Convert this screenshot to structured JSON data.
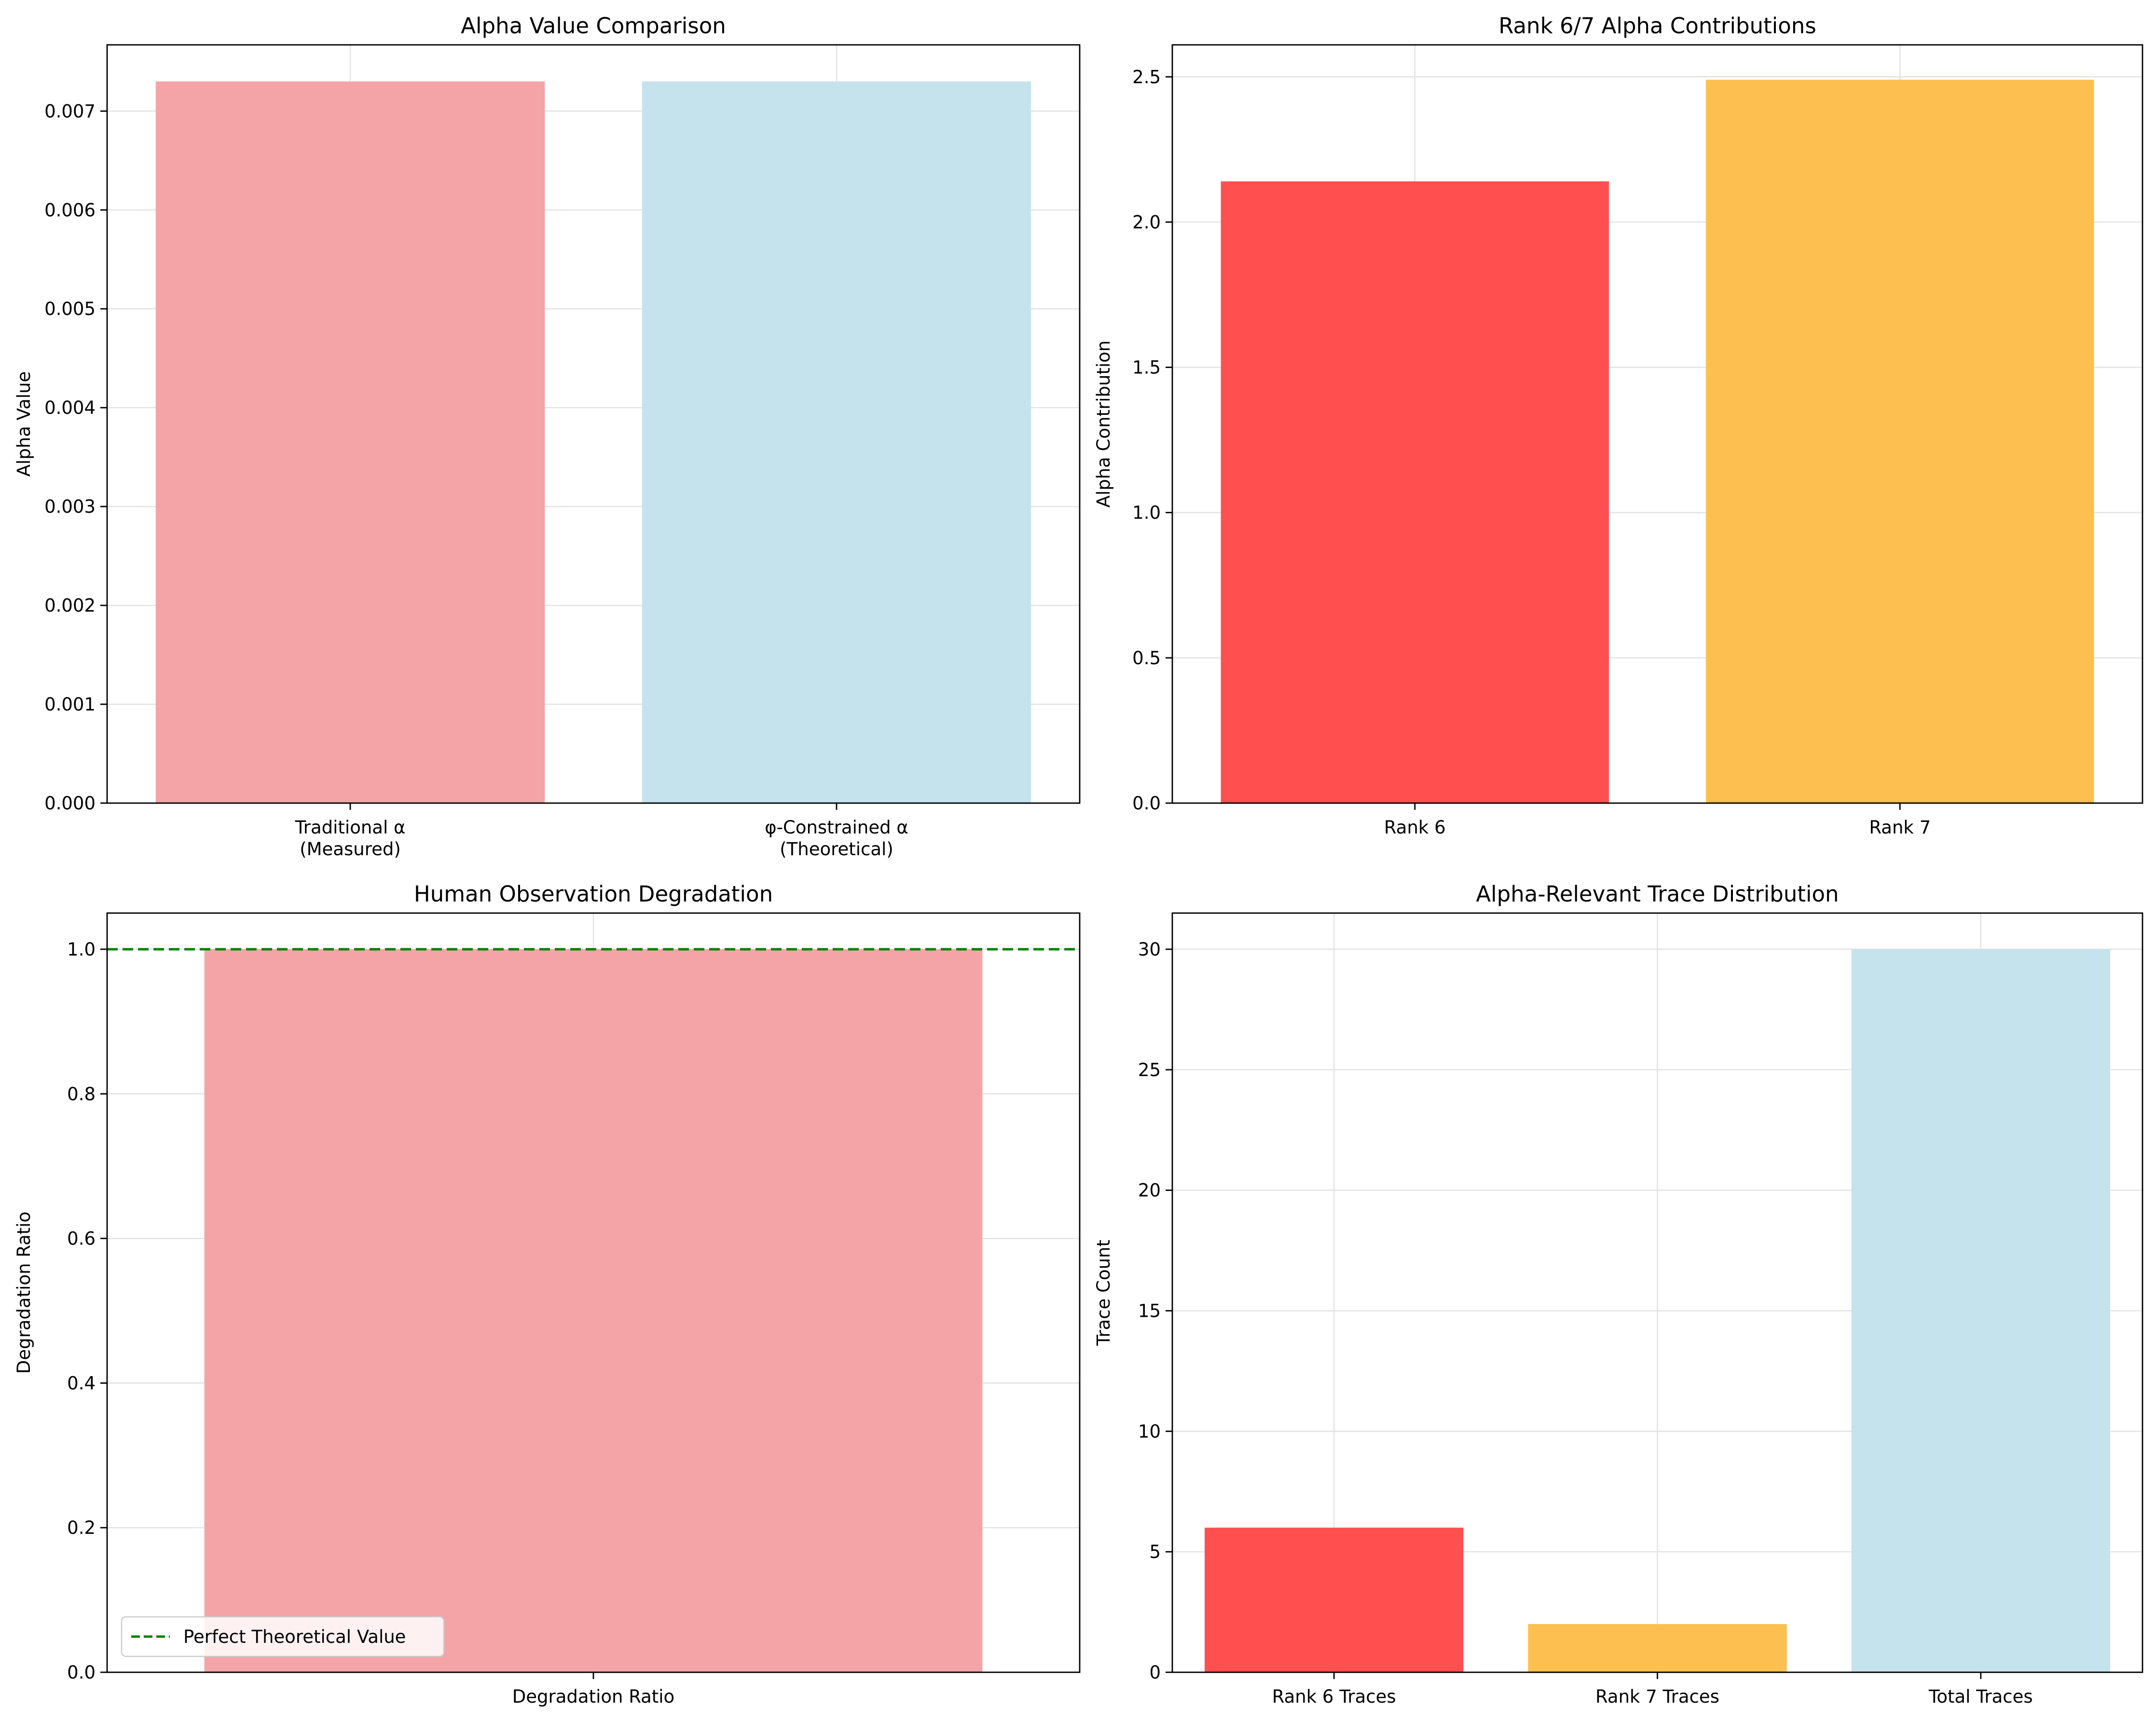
{
  "chart_data": [
    {
      "type": "bar",
      "title": "Alpha Value Comparison",
      "xlabel": "",
      "ylabel": "Alpha Value",
      "categories": [
        "Traditional α\n(Measured)",
        "φ-Constrained α\n(Theoretical)"
      ],
      "values": [
        0.0073,
        0.0073
      ],
      "colors": [
        "#f4a4a7",
        "#c5e3ec"
      ],
      "ylim": [
        0,
        0.00767
      ],
      "yticks": [
        "0.000",
        "0.001",
        "0.002",
        "0.003",
        "0.004",
        "0.005",
        "0.006",
        "0.007"
      ],
      "grid": true
    },
    {
      "type": "bar",
      "title": "Rank 6/7 Alpha Contributions",
      "xlabel": "",
      "ylabel": "Alpha Contribution",
      "categories": [
        "Rank 6",
        "Rank 7"
      ],
      "values": [
        2.14,
        2.49
      ],
      "colors": [
        "#ff4f4f",
        "#fdbf4f"
      ],
      "ylim": [
        0,
        2.61
      ],
      "yticks": [
        "0.0",
        "0.5",
        "1.0",
        "1.5",
        "2.0",
        "2.5"
      ],
      "grid": true
    },
    {
      "type": "bar",
      "title": "Human Observation Degradation",
      "xlabel": "",
      "ylabel": "Degradation Ratio",
      "categories": [
        "Degradation Ratio"
      ],
      "values": [
        1.0
      ],
      "colors": [
        "#f4a4a7"
      ],
      "ylim": [
        0,
        1.05
      ],
      "yticks": [
        "0.0",
        "0.2",
        "0.4",
        "0.6",
        "0.8",
        "1.0"
      ],
      "reference_line": {
        "value": 1.0,
        "color": "#008000",
        "label": "Perfect Theoretical Value"
      },
      "legend": "lower-left",
      "grid": true
    },
    {
      "type": "bar",
      "title": "Alpha-Relevant Trace Distribution",
      "xlabel": "",
      "ylabel": "Trace Count",
      "categories": [
        "Rank 6 Traces",
        "Rank 7 Traces",
        "Total Traces"
      ],
      "values": [
        6,
        2,
        30
      ],
      "colors": [
        "#ff4f4f",
        "#fdbf4f",
        "#c5e3ec"
      ],
      "ylim": [
        0,
        31.5
      ],
      "yticks": [
        "0",
        "5",
        "10",
        "15",
        "20",
        "25",
        "30"
      ],
      "grid": true
    }
  ]
}
